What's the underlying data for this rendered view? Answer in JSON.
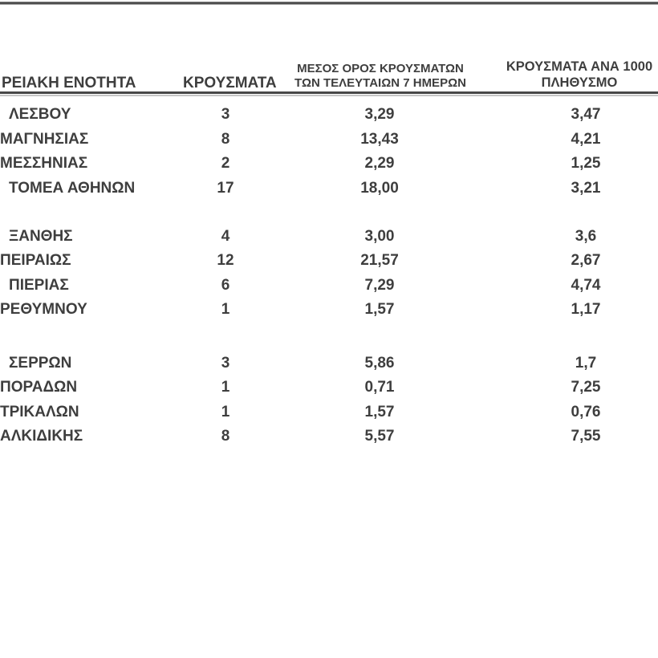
{
  "table": {
    "header": {
      "regional_unit": "ΡΕΙΑΚΗ ΕΝΟΤΗΤΑ",
      "cases": "ΚΡΟΥΣΜΑΤΑ",
      "avg_7day_line1": "ΜΕΣΟΣ ΟΡΟΣ ΚΡΟΥΣΜΑΤΩΝ",
      "avg_7day_line2": "ΤΩΝ ΤΕΛΕΥΤΑΙΩΝ 7 ΗΜΕΡΩΝ",
      "per_1000_line1": "ΚΡΟΥΣΜΑΤΑ ΑΝΑ 1000",
      "per_1000_line2": "ΠΛΗΘΥΣΜΟ"
    },
    "rows": [
      {
        "name": "ΛΕΣΒΟΥ",
        "cases": "3",
        "avg7": "3,29",
        "per1000": "3,47"
      },
      {
        "name": "ΜΑΓΝΗΣΙΑΣ",
        "cases": "8",
        "avg7": "13,43",
        "per1000": "4,21"
      },
      {
        "name": "ΜΕΣΣΗΝΙΑΣ",
        "cases": "2",
        "avg7": "2,29",
        "per1000": "1,25"
      },
      {
        "name": "ΤΟΜΕΑ ΑΘΗΝΩΝ",
        "cases": "17",
        "avg7": "18,00",
        "per1000": "3,21"
      },
      {
        "name": "ΞΑΝΘΗΣ",
        "cases": "4",
        "avg7": "3,00",
        "per1000": "3,6"
      },
      {
        "name": "ΠΕΙΡΑΙΩΣ",
        "cases": "12",
        "avg7": "21,57",
        "per1000": "2,67"
      },
      {
        "name": "ΠΙΕΡΙΑΣ",
        "cases": "6",
        "avg7": "7,29",
        "per1000": "4,74"
      },
      {
        "name": "ΡΕΘΥΜΝΟΥ",
        "cases": "1",
        "avg7": "1,57",
        "per1000": "1,17"
      },
      {
        "name": "ΣΕΡΡΩΝ",
        "cases": "3",
        "avg7": "5,86",
        "per1000": "1,7"
      },
      {
        "name": "ΠΟΡΑΔΩΝ",
        "cases": "1",
        "avg7": "0,71",
        "per1000": "7,25"
      },
      {
        "name": "ΤΡΙΚΑΛΩΝ",
        "cases": "1",
        "avg7": "1,57",
        "per1000": "0,76"
      },
      {
        "name": "ΑΛΚΙΔΙΚΗΣ",
        "cases": "8",
        "avg7": "5,57",
        "per1000": "7,55"
      }
    ],
    "colors": {
      "text": "#3e3e3e",
      "top_rule": "#383838",
      "header_rule_dark": "#474747",
      "header_rule_light": "#c6c6c6",
      "background": "#ffffff"
    }
  }
}
